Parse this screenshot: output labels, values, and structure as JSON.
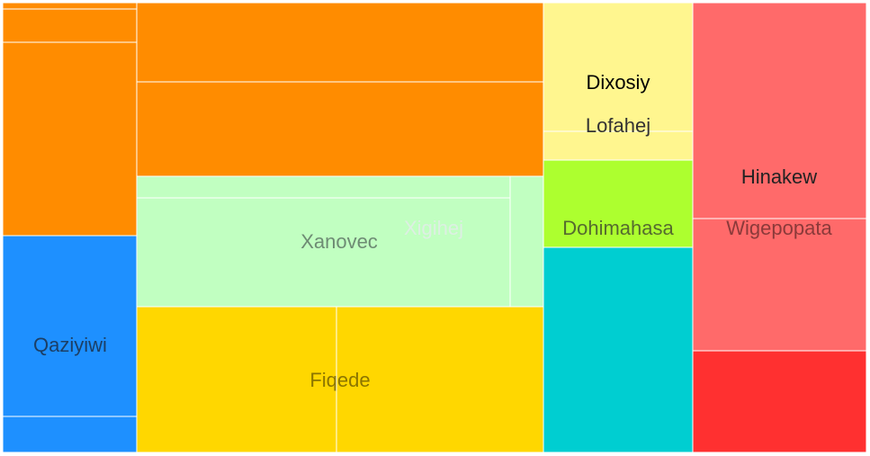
{
  "chart_data": {
    "type": "treemap",
    "title": "",
    "groups": [
      {
        "name": "",
        "color": "#FF8C00",
        "values": [
          1.0,
          3.4,
          25.3,
          34.9,
          42.0
        ]
      },
      {
        "name": "Qaziyiwi",
        "color": "#1E90FF",
        "values": [
          30.1,
          6.0
        ]
      },
      {
        "name": "Xanovec",
        "color": "#C1FFC1",
        "values": [
          10.9,
          52.7
        ]
      },
      {
        "name": "Xigihej",
        "color": "#C1FFC1",
        "values": [
          5.1
        ]
      },
      {
        "name": "Fiqede",
        "color": "#FFD700",
        "values": [
          33.0,
          34.4
        ]
      },
      {
        "name": "Dixosiy",
        "color": "#FFF68F",
        "values": [
          23.3
        ]
      },
      {
        "name": "Lofahej",
        "color": "#FFF68F",
        "values": [
          5.2
        ]
      },
      {
        "name": "Dohimahasa",
        "color": "#ADFF2F",
        "values": [
          15.5
        ]
      },
      {
        "name": "",
        "color": "#00CED1",
        "values": [
          37.8
        ]
      },
      {
        "name": "Hinakew",
        "color": "#FF6A6A",
        "values": [
          44.7
        ]
      },
      {
        "name": "Wigepopata",
        "color": "#FF6A6A",
        "values": [
          28.1
        ]
      },
      {
        "name": "",
        "color": "#FF3030",
        "values": [
          21.7
        ]
      }
    ]
  }
}
